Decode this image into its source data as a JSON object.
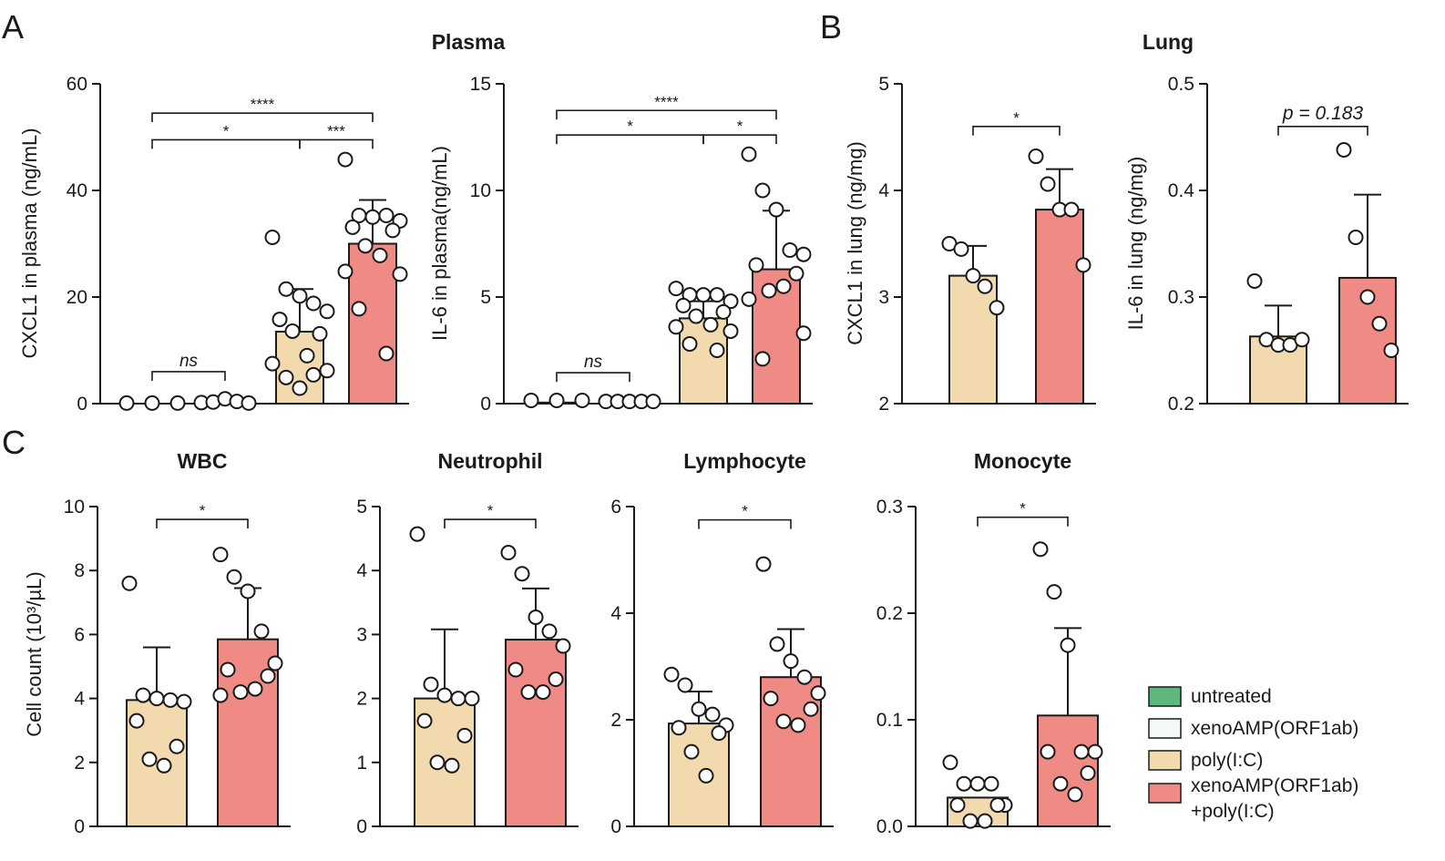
{
  "panels": {
    "A": "A",
    "B": "B",
    "C": "C"
  },
  "section_titles": {
    "plasma": "Plasma",
    "lung": "Lung"
  },
  "colors": {
    "untreated": "#5cb87c",
    "xeno": "#f4f8f6",
    "polyic": "#f2d9ae",
    "combo": "#ef8a85",
    "axis": "#1a1a1a"
  },
  "legend": [
    {
      "key": "untreated",
      "label": "untreated"
    },
    {
      "key": "xeno",
      "label": "xenoAMP(ORF1ab)"
    },
    {
      "key": "polyic",
      "label": "poly(I:C)"
    },
    {
      "key": "combo",
      "label": "xenoAMP(ORF1ab)",
      "label2": "+poly(I:C)"
    }
  ],
  "chart_data": [
    {
      "id": "cxcl1-plasma",
      "type": "bar",
      "title": "",
      "ylabel": "CXCL1 in plasma (ng/mL)",
      "ylim": [
        0,
        60
      ],
      "yticks": [
        "0",
        "20",
        "40",
        "60"
      ],
      "groups": [
        {
          "key": "untreated",
          "mean": 0,
          "sd": 0,
          "points": [
            0.1,
            0.1,
            0.1
          ]
        },
        {
          "key": "xeno",
          "mean": 0.5,
          "sd": 0,
          "points": [
            0.2,
            0.3,
            0.9,
            0.4,
            0.1
          ]
        },
        {
          "key": "polyic",
          "mean": 13.5,
          "sd": 8,
          "points": [
            31.2,
            21.5,
            20.2,
            18.8,
            17.3,
            15.8,
            13.1,
            13.6,
            9.0,
            7.5,
            6.2,
            4.9,
            5.4,
            2.9
          ]
        },
        {
          "key": "combo",
          "mean": 30,
          "sd": 8.2,
          "points": [
            45.8,
            35.3,
            35.0,
            35.3,
            34.3,
            33.1,
            32.5,
            29.6,
            27.8,
            24.8,
            24.3,
            17.8,
            9.4
          ]
        }
      ],
      "brackets": [
        {
          "from": 0,
          "to": 1,
          "y": 6,
          "label": "ns"
        },
        {
          "from": 0,
          "to": 2,
          "y": 49.5,
          "label": "*"
        },
        {
          "from": 2,
          "to": 3,
          "y": 49.5,
          "label": "***"
        },
        {
          "from": 0,
          "to": 3,
          "y": 54.5,
          "label": "****"
        }
      ]
    },
    {
      "id": "il6-plasma",
      "type": "bar",
      "title": "",
      "ylabel": "IL-6 in plasma(ng/mL)",
      "ylim": [
        0,
        15
      ],
      "yticks": [
        "0",
        "5",
        "10",
        "15"
      ],
      "groups": [
        {
          "key": "untreated",
          "mean": 0.05,
          "sd": 0,
          "points": [
            0.15,
            0.15,
            0.15
          ]
        },
        {
          "key": "xeno",
          "mean": 0.05,
          "sd": 0,
          "points": [
            0.1,
            0.1,
            0.1,
            0.1,
            0.1
          ]
        },
        {
          "key": "polyic",
          "mean": 4.0,
          "sd": 0.8,
          "points": [
            5.4,
            5.1,
            5.1,
            5.1,
            4.8,
            4.6,
            4.3,
            4.1,
            3.7,
            3.6,
            3.4,
            2.8,
            2.5
          ]
        },
        {
          "key": "combo",
          "mean": 6.3,
          "sd": 2.75,
          "points": [
            11.7,
            10.0,
            9.1,
            7.2,
            7.0,
            6.5,
            6.1,
            5.3,
            5.5,
            4.9,
            3.3,
            2.1
          ]
        }
      ],
      "brackets": [
        {
          "from": 0,
          "to": 1,
          "y": 1.45,
          "label": "ns"
        },
        {
          "from": 0,
          "to": 2,
          "y": 12.6,
          "label": "*"
        },
        {
          "from": 2,
          "to": 3,
          "y": 12.6,
          "label": "*"
        },
        {
          "from": 0,
          "to": 3,
          "y": 13.75,
          "label": "****"
        }
      ]
    },
    {
      "id": "cxcl1-lung",
      "type": "bar",
      "title": "",
      "ylabel": "CXCL1 in lung (ng/mg)",
      "ylim": [
        2,
        5
      ],
      "yticks": [
        "2",
        "3",
        "4",
        "5"
      ],
      "groups": [
        {
          "key": "polyic",
          "mean": 3.2,
          "sd": 0.28,
          "points": [
            3.5,
            3.45,
            3.2,
            3.1,
            2.9
          ]
        },
        {
          "key": "combo",
          "mean": 3.82,
          "sd": 0.38,
          "points": [
            4.32,
            4.06,
            3.82,
            3.82,
            3.3
          ]
        }
      ],
      "brackets": [
        {
          "from": 0,
          "to": 1,
          "y": 4.6,
          "label": "*"
        }
      ]
    },
    {
      "id": "il6-lung",
      "type": "bar",
      "title": "",
      "ylabel": "IL-6 in lung (ng/mg)",
      "ylim": [
        0.2,
        0.5
      ],
      "yticks": [
        "0.2",
        "0.3",
        "0.4",
        "0.5"
      ],
      "groups": [
        {
          "key": "polyic",
          "mean": 0.263,
          "sd": 0.029,
          "points": [
            0.315,
            0.26,
            0.255,
            0.255,
            0.26
          ]
        },
        {
          "key": "combo",
          "mean": 0.318,
          "sd": 0.078,
          "points": [
            0.438,
            0.356,
            0.3,
            0.275,
            0.25
          ]
        }
      ],
      "brackets": [
        {
          "from": 0,
          "to": 1,
          "y": 0.46,
          "label": "p = 0.183"
        }
      ]
    },
    {
      "id": "wbc",
      "type": "bar",
      "title": "WBC",
      "ylabel": "Cell count (10³/µL)",
      "ylim": [
        0,
        10
      ],
      "yticks": [
        "0",
        "2",
        "4",
        "6",
        "8",
        "10"
      ],
      "groups": [
        {
          "key": "polyic",
          "mean": 3.95,
          "sd": 1.65,
          "points": [
            7.6,
            4.1,
            4.0,
            3.95,
            3.9,
            3.3,
            2.5,
            2.1,
            1.9
          ]
        },
        {
          "key": "combo",
          "mean": 5.85,
          "sd": 1.6,
          "points": [
            8.5,
            7.8,
            7.35,
            6.1,
            5.1,
            4.9,
            4.7,
            4.2,
            4.3,
            4.1
          ]
        }
      ],
      "brackets": [
        {
          "from": 0,
          "to": 1,
          "y": 9.6,
          "label": "*"
        }
      ]
    },
    {
      "id": "neutrophil",
      "type": "bar",
      "title": "Neutrophil",
      "ylabel": "",
      "ylim": [
        0,
        5
      ],
      "yticks": [
        "0",
        "1",
        "2",
        "3",
        "4",
        "5"
      ],
      "groups": [
        {
          "key": "polyic",
          "mean": 2.0,
          "sd": 1.08,
          "points": [
            4.57,
            2.22,
            2.05,
            2.0,
            2.0,
            1.65,
            1.42,
            1.0,
            0.95
          ]
        },
        {
          "key": "combo",
          "mean": 2.92,
          "sd": 0.8,
          "points": [
            4.28,
            3.95,
            3.27,
            3.05,
            2.82,
            2.45,
            2.3,
            2.1,
            2.1
          ]
        }
      ],
      "brackets": [
        {
          "from": 0,
          "to": 1,
          "y": 4.8,
          "label": "*"
        }
      ]
    },
    {
      "id": "lymphocyte",
      "type": "bar",
      "title": "Lymphocyte",
      "ylabel": "",
      "ylim": [
        0,
        6
      ],
      "yticks": [
        "0",
        "2",
        "4",
        "6"
      ],
      "groups": [
        {
          "key": "polyic",
          "mean": 1.93,
          "sd": 0.6,
          "points": [
            2.85,
            2.65,
            2.2,
            2.1,
            1.9,
            1.85,
            1.75,
            1.4,
            0.95
          ]
        },
        {
          "key": "combo",
          "mean": 2.8,
          "sd": 0.9,
          "points": [
            4.92,
            3.42,
            3.1,
            2.8,
            2.5,
            2.4,
            2.2,
            1.97,
            1.9
          ]
        }
      ],
      "brackets": [
        {
          "from": 0,
          "to": 1,
          "y": 5.75,
          "label": "*"
        }
      ]
    },
    {
      "id": "monocyte",
      "type": "bar",
      "title": "Monocyte",
      "ylabel": "",
      "ylim": [
        0,
        0.3
      ],
      "yticks": [
        "0.0",
        "0.1",
        "0.2",
        "0.3"
      ],
      "groups": [
        {
          "key": "polyic",
          "mean": 0.027,
          "sd": 0,
          "points": [
            0.06,
            0.04,
            0.04,
            0.04,
            0.02,
            0.02,
            0.02,
            0.005,
            0.005
          ]
        },
        {
          "key": "combo",
          "mean": 0.104,
          "sd": 0.082,
          "points": [
            0.26,
            0.22,
            0.17,
            0.07,
            0.07,
            0.07,
            0.05,
            0.04,
            0.03
          ]
        }
      ],
      "brackets": [
        {
          "from": 0,
          "to": 1,
          "y": 0.29,
          "label": "*"
        }
      ]
    }
  ]
}
